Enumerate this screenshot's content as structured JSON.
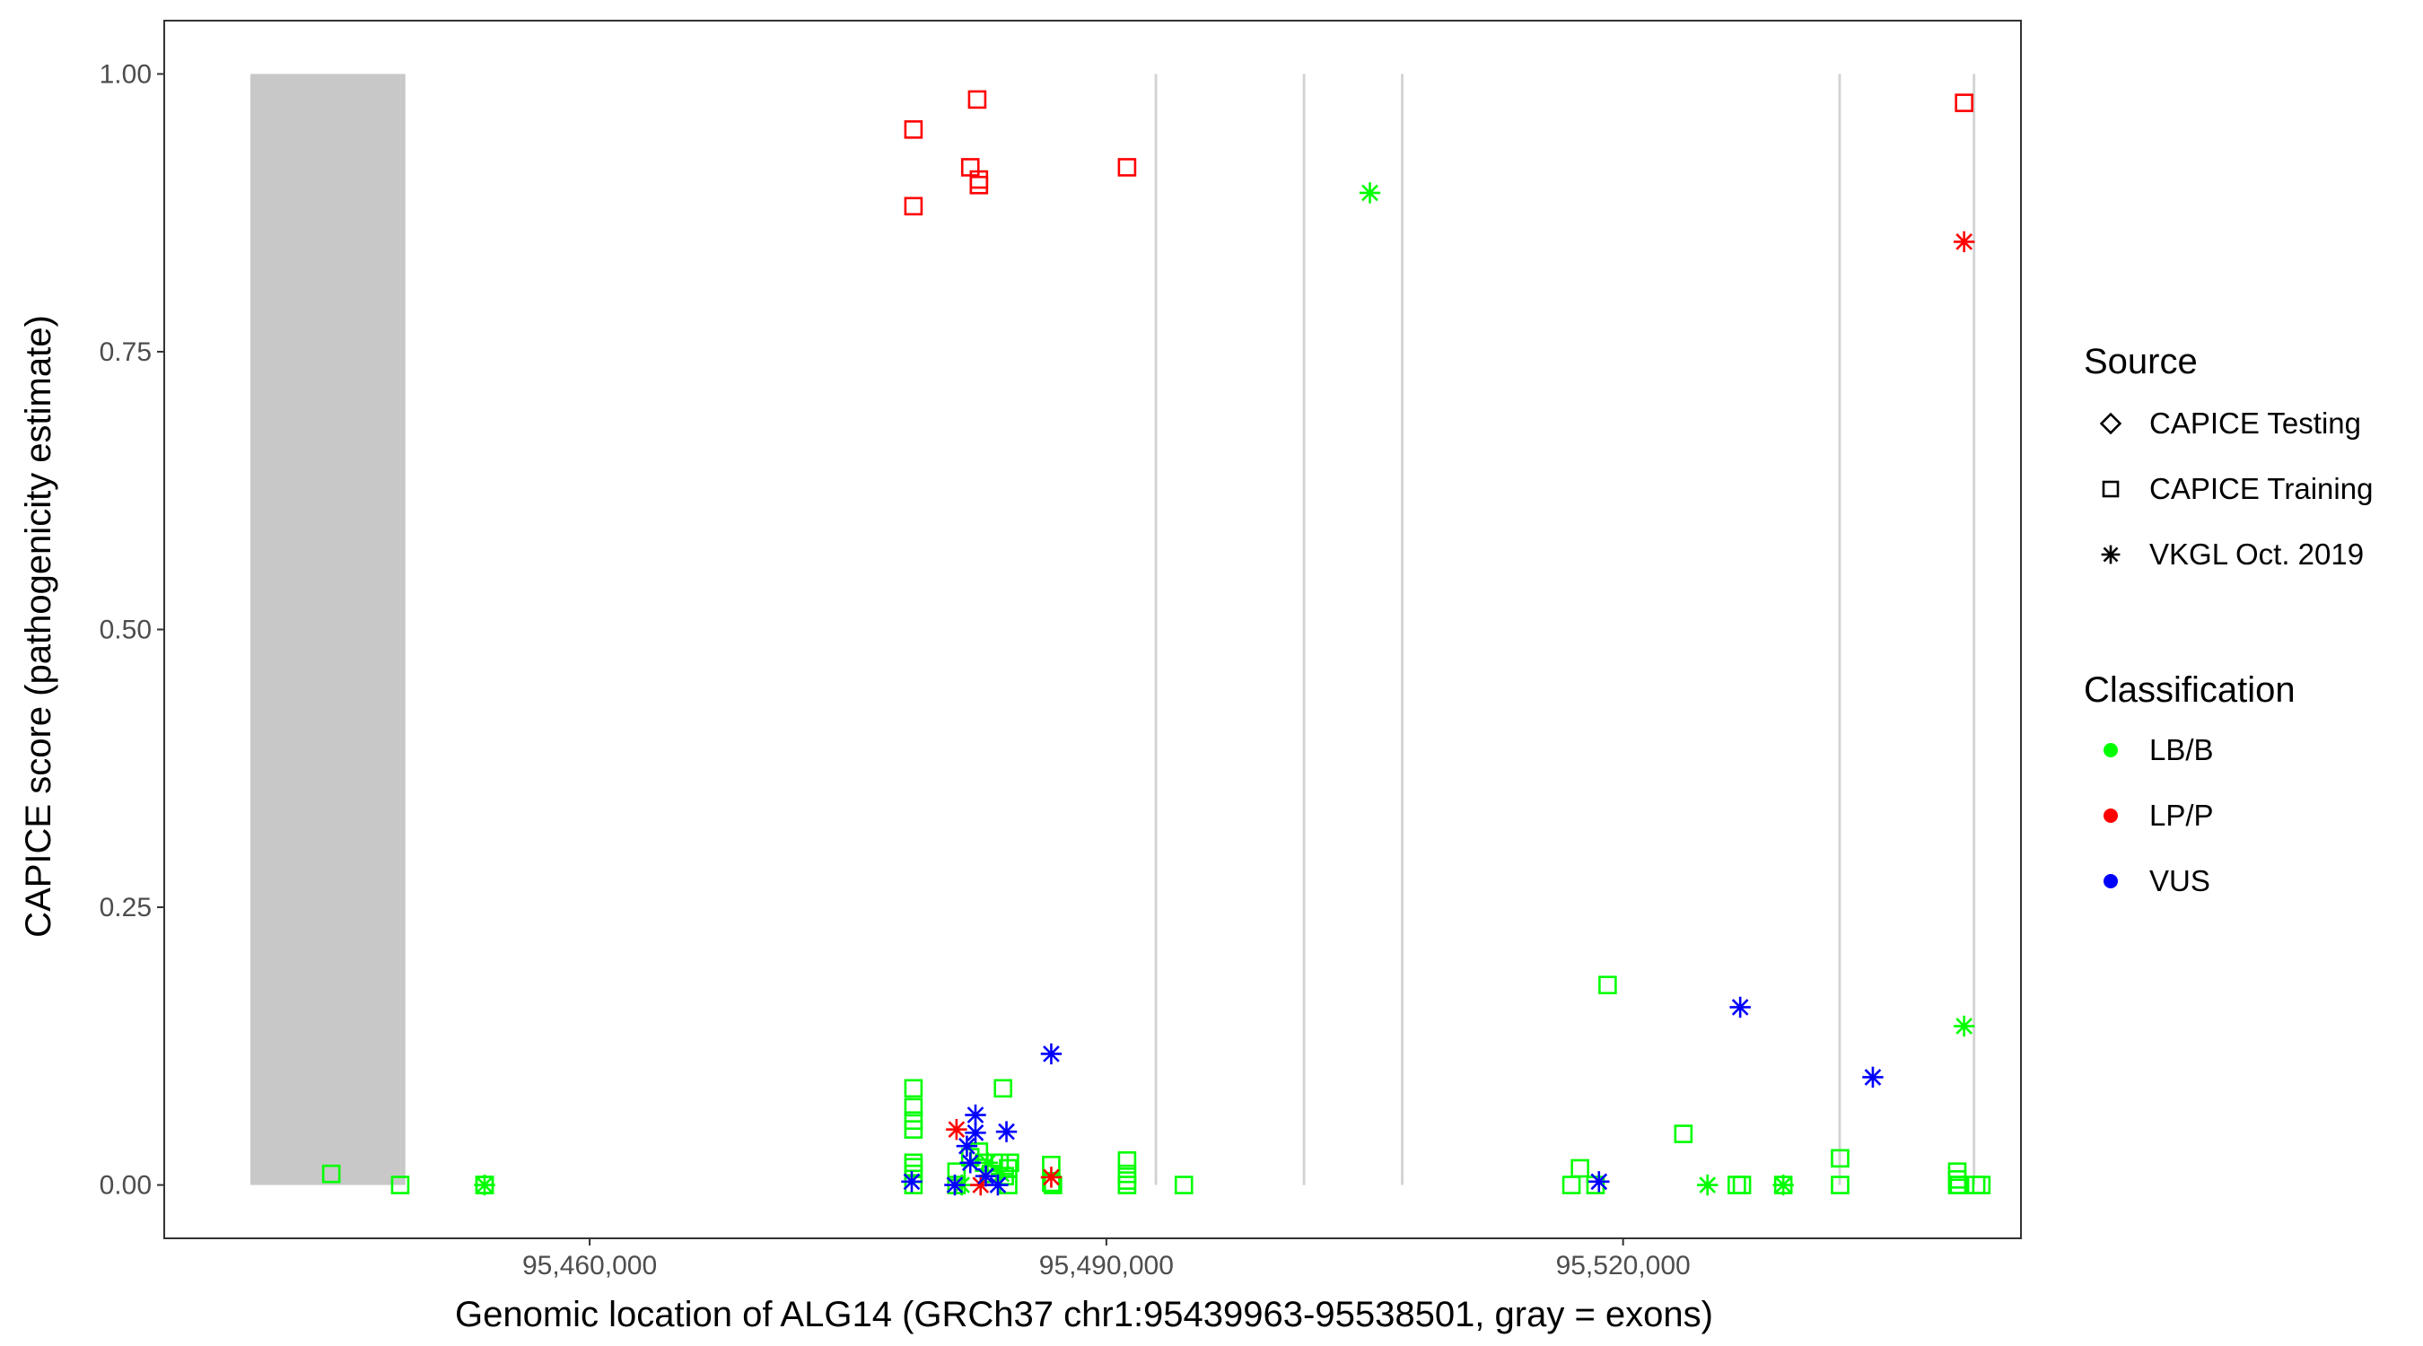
{
  "chart_data": {
    "type": "scatter",
    "xlabel": "Genomic location of ALG14 (GRCh37 chr1:95439963-95538501, gray = exons)",
    "ylabel": "CAPICE score (pathogenicity estimate)",
    "xlim": [
      95435300,
      95543100
    ],
    "ylim": [
      -0.048,
      1.048
    ],
    "x_ticks": [
      95460000,
      95490000,
      95520000
    ],
    "x_tick_labels": [
      "95,460,000",
      "95,490,000",
      "95,520,000"
    ],
    "y_ticks": [
      0.0,
      0.25,
      0.5,
      0.75,
      1.0
    ],
    "y_tick_labels": [
      "0.00",
      "0.25",
      "0.50",
      "0.75",
      "1.00"
    ],
    "grid": false,
    "legend_placement": "right",
    "exons": [
      {
        "start": 95440300,
        "end": 95449050,
        "fill": "#c8c8c8"
      },
      {
        "start": 95449050,
        "end": 95449300,
        "fill": "#c8c8c8"
      },
      {
        "start": 95492800,
        "end": 95492950,
        "fill": "#d3d3d3"
      },
      {
        "start": 95501400,
        "end": 95501550,
        "fill": "#d3d3d3"
      },
      {
        "start": 95507100,
        "end": 95507250,
        "fill": "#d3d3d3"
      },
      {
        "start": 95532500,
        "end": 95532650,
        "fill": "#d3d3d3"
      },
      {
        "start": 95540300,
        "end": 95540450,
        "fill": "#d3d3d3"
      }
    ],
    "legends": {
      "source": {
        "title": "Source",
        "items": [
          {
            "label": "CAPICE Testing",
            "shape": "diamond"
          },
          {
            "label": "CAPICE Training",
            "shape": "square"
          },
          {
            "label": "VKGL Oct. 2019",
            "shape": "asterisk"
          }
        ]
      },
      "classification": {
        "title": "Classification",
        "items": [
          {
            "label": "LB/B",
            "color": "#00ff00"
          },
          {
            "label": "LP/P",
            "color": "#ff0000"
          },
          {
            "label": "VUS",
            "color": "#0000ff"
          }
        ]
      }
    },
    "series": [
      {
        "classification": "LB/B",
        "source": "CAPICE Training",
        "shape": "square",
        "color": "#00ff00",
        "points": [
          [
            95445000,
            0.01
          ],
          [
            95449000,
            0.0
          ],
          [
            95453900,
            0.0
          ],
          [
            95453900,
            0.0
          ],
          [
            95478800,
            0.087
          ],
          [
            95478800,
            0.07
          ],
          [
            95478800,
            0.058
          ],
          [
            95478800,
            0.05
          ],
          [
            95478800,
            0.02
          ],
          [
            95478800,
            0.016
          ],
          [
            95478800,
            0.01
          ],
          [
            95478800,
            0.0
          ],
          [
            95481300,
            0.012
          ],
          [
            95481300,
            0.0
          ],
          [
            95482100,
            0.025
          ],
          [
            95482600,
            0.03
          ],
          [
            95482900,
            0.02
          ],
          [
            95483300,
            0.01
          ],
          [
            95483800,
            0.02
          ],
          [
            95484300,
            0.0
          ],
          [
            95484300,
            0.015
          ],
          [
            95484100,
            0.008
          ],
          [
            95484000,
            0.087
          ],
          [
            95484400,
            0.02
          ],
          [
            95486800,
            0.018
          ],
          [
            95486800,
            0.002
          ],
          [
            95486900,
            0.0
          ],
          [
            95491200,
            0.022
          ],
          [
            95491200,
            0.01
          ],
          [
            95491200,
            0.004
          ],
          [
            95491200,
            0.0
          ],
          [
            95494500,
            0.0
          ],
          [
            95517000,
            0.0
          ],
          [
            95517500,
            0.015
          ],
          [
            95518400,
            0.0
          ],
          [
            95519100,
            0.18
          ],
          [
            95523500,
            0.046
          ],
          [
            95526600,
            0.0
          ],
          [
            95526900,
            0.0
          ],
          [
            95529300,
            0.0
          ],
          [
            95532600,
            0.024
          ],
          [
            95532600,
            0.0
          ],
          [
            95539400,
            0.012
          ],
          [
            95539400,
            0.005
          ],
          [
            95539400,
            0.0
          ],
          [
            95539500,
            0.0
          ],
          [
            95540500,
            0.0
          ],
          [
            95540800,
            0.0
          ]
        ]
      },
      {
        "classification": "LB/B",
        "source": "VKGL Oct. 2019",
        "shape": "asterisk",
        "color": "#00ff00",
        "points": [
          [
            95453900,
            0.0
          ],
          [
            95505300,
            0.893
          ],
          [
            95524900,
            0.0
          ],
          [
            95529300,
            0.0
          ],
          [
            95539800,
            0.143
          ],
          [
            95483100,
            0.02
          ],
          [
            95483900,
            0.01
          ],
          [
            95481600,
            0.0
          ]
        ]
      },
      {
        "classification": "LP/P",
        "source": "CAPICE Training",
        "shape": "square",
        "color": "#ff0000",
        "points": [
          [
            95478800,
            0.95
          ],
          [
            95478800,
            0.881
          ],
          [
            95482100,
            0.916
          ],
          [
            95482500,
            0.977
          ],
          [
            95482600,
            0.905
          ],
          [
            95482600,
            0.9
          ],
          [
            95491200,
            0.916
          ],
          [
            95539800,
            0.974
          ]
        ]
      },
      {
        "classification": "LP/P",
        "source": "VKGL Oct. 2019",
        "shape": "asterisk",
        "color": "#ff0000",
        "points": [
          [
            95481300,
            0.05
          ],
          [
            95482700,
            0.0
          ],
          [
            95486800,
            0.007
          ],
          [
            95539800,
            0.849
          ]
        ]
      },
      {
        "classification": "VUS",
        "source": "VKGL Oct. 2019",
        "shape": "asterisk",
        "color": "#0000ff",
        "points": [
          [
            95478700,
            0.003
          ],
          [
            95481200,
            0.0
          ],
          [
            95481900,
            0.035
          ],
          [
            95482400,
            0.063
          ],
          [
            95482400,
            0.047
          ],
          [
            95482100,
            0.02
          ],
          [
            95483000,
            0.008
          ],
          [
            95483700,
            0.0
          ],
          [
            95484200,
            0.048
          ],
          [
            95486800,
            0.118
          ],
          [
            95518600,
            0.003
          ],
          [
            95526800,
            0.16
          ],
          [
            95534500,
            0.097
          ]
        ]
      }
    ]
  }
}
